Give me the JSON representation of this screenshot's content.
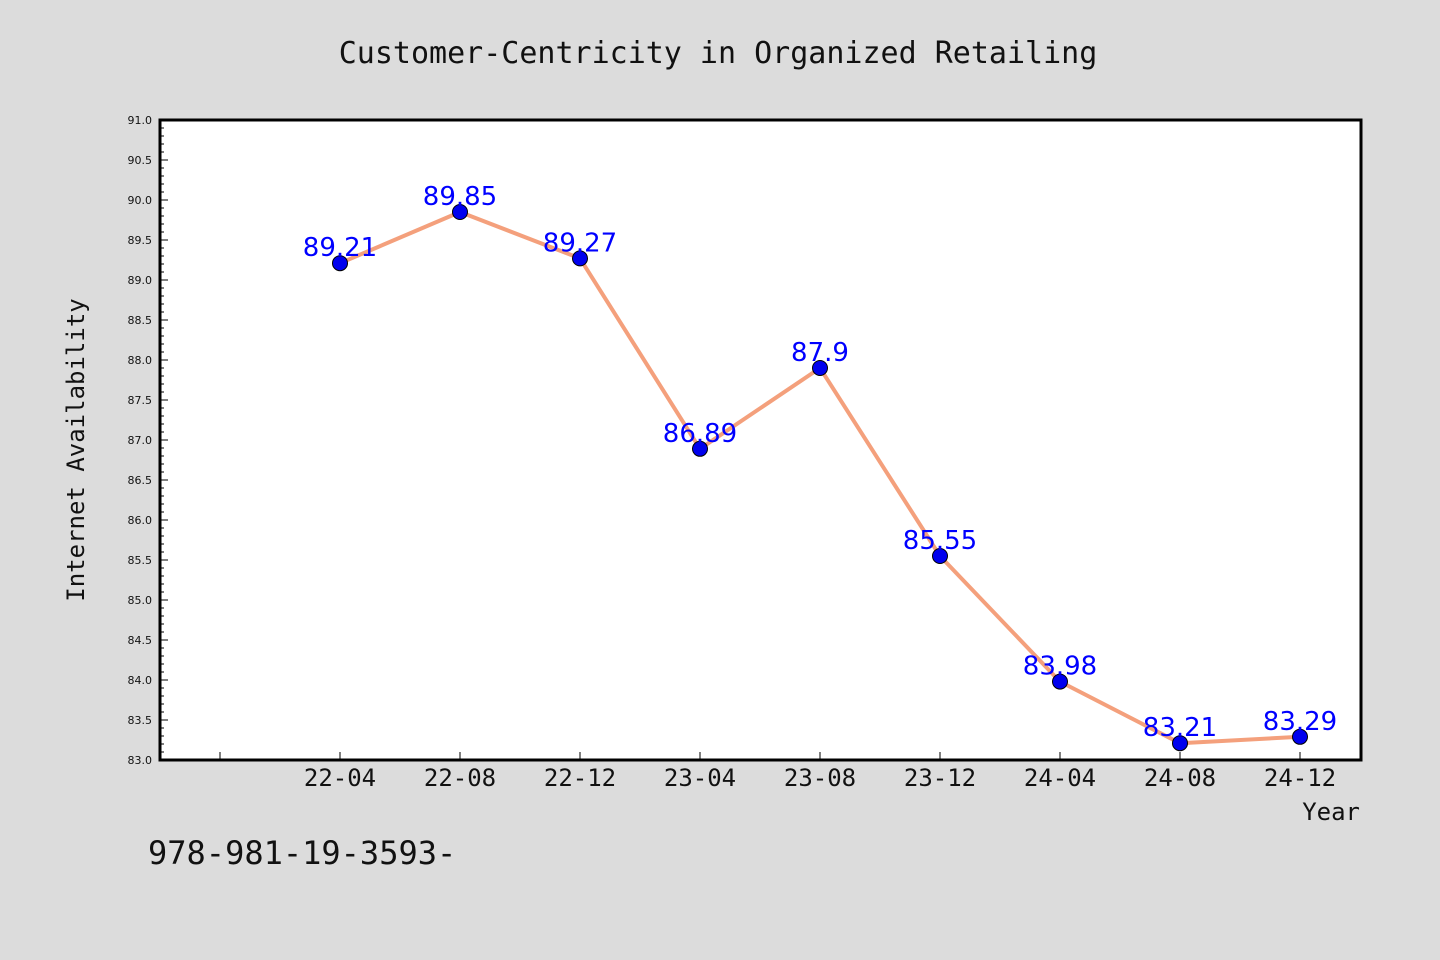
{
  "page": {
    "title": "Customer-Centricity in Organized Retailing",
    "footer_text": "978-981-19-3593-",
    "background": "#dcdcdc"
  },
  "chart_data": {
    "type": "line",
    "title": "Customer-Centricity in Organized Retailing",
    "xlabel": "Year",
    "ylabel": "Internet Availability",
    "categories": [
      "22-04",
      "22-08",
      "22-12",
      "23-04",
      "23-08",
      "23-12",
      "24-04",
      "24-08",
      "24-12"
    ],
    "series": [
      {
        "values": [
          89.21,
          89.85,
          89.27,
          86.89,
          87.9,
          85.55,
          83.98,
          83.21,
          83.29
        ],
        "labels": [
          "89.21",
          "89.85",
          "89.27",
          "86.89",
          "87.9",
          "85.55",
          "83.98",
          "83.21",
          "83.29"
        ],
        "line_color": "#f4a07c",
        "marker_color": "#0000ee",
        "label_color": "#0000ff"
      }
    ],
    "ylim": [
      83.0,
      91.0
    ],
    "yticks": [
      "83.0",
      "83.5",
      "84.0",
      "84.5",
      "85.0",
      "85.5",
      "86.0",
      "86.5",
      "87.0",
      "87.5",
      "88.0",
      "88.5",
      "89.0",
      "89.5",
      "90.0",
      "90.5",
      "91.0"
    ],
    "grid": false,
    "legend": "none"
  }
}
